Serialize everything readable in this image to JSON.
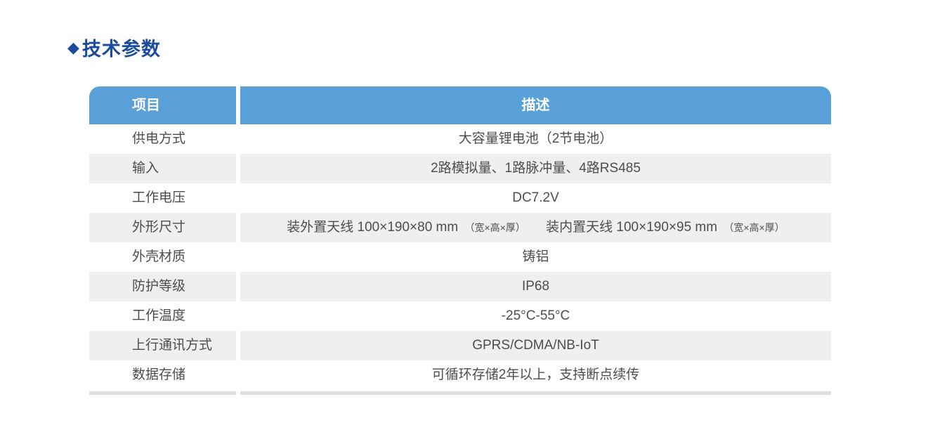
{
  "title": {
    "marker": "◆",
    "text": "技术参数"
  },
  "table": {
    "headers": {
      "item": "项目",
      "description": "描述"
    },
    "rows": [
      {
        "label": "供电方式",
        "value": "大容量锂电池（2节电池）"
      },
      {
        "label": "输入",
        "value": "2路模拟量、1路脉冲量、4路RS485"
      },
      {
        "label": "工作电压",
        "value": "DC7.2V"
      },
      {
        "label": "外形尺寸",
        "parts": {
          "external": "装外置天线  100×190×80 mm",
          "external_note": "（宽×高×厚）",
          "internal": "装内置天线  100×190×95 mm",
          "internal_note": "（宽×高×厚）"
        }
      },
      {
        "label": "外壳材质",
        "value": "铸铝"
      },
      {
        "label": "防护等级",
        "value": "IP68"
      },
      {
        "label": "工作温度",
        "value": "-25°C-55°C"
      },
      {
        "label": "上行通讯方式",
        "value": "GPRS/CDMA/NB-IoT"
      },
      {
        "label": "数据存储",
        "value": "可循环存储2年以上，支持断点续传"
      }
    ]
  },
  "colors": {
    "title_blue": "#1A4B9D",
    "header_bg": "#58A0D7",
    "header_text": "#FFFFFF",
    "row_alt_bg": "#EEEFEF",
    "body_text": "#4D4D4D",
    "bottom_strip": "#DEDEDE"
  }
}
